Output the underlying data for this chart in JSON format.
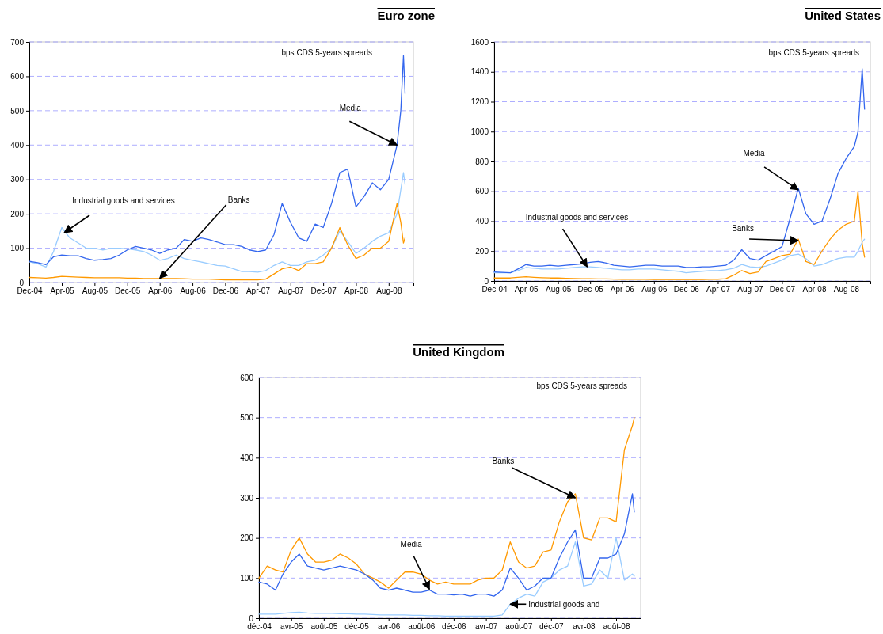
{
  "chart_data": [
    {
      "type": "line",
      "title": "Euro zone",
      "grid": "y",
      "xlim": [
        "2004-12-01",
        "2008-11-01"
      ],
      "ylim": [
        0,
        700
      ],
      "yticks": [
        0,
        100,
        200,
        300,
        400,
        500,
        600,
        700
      ],
      "xticks": [
        {
          "value": "2004-12-01",
          "label": "Dec-04"
        },
        {
          "value": "2005-04-01",
          "label": "Apr-05"
        },
        {
          "value": "2005-08-01",
          "label": "Aug-05"
        },
        {
          "value": "2005-12-01",
          "label": "Dec-05"
        },
        {
          "value": "2006-04-01",
          "label": "Apr-06"
        },
        {
          "value": "2006-08-01",
          "label": "Aug-06"
        },
        {
          "value": "2006-12-01",
          "label": "Dec-06"
        },
        {
          "value": "2007-04-01",
          "label": "Apr-07"
        },
        {
          "value": "2007-08-01",
          "label": "Aug-07"
        },
        {
          "value": "2007-12-01",
          "label": "Dec-07"
        },
        {
          "value": "2008-04-01",
          "label": "Apr-08"
        },
        {
          "value": "2008-08-01",
          "label": "Aug-08"
        }
      ],
      "x": [
        "2004-12-01",
        "2005-01-01",
        "2005-02-01",
        "2005-03-01",
        "2005-04-01",
        "2005-05-01",
        "2005-06-01",
        "2005-07-01",
        "2005-08-01",
        "2005-09-01",
        "2005-10-01",
        "2005-11-01",
        "2005-12-01",
        "2006-01-01",
        "2006-02-01",
        "2006-03-01",
        "2006-04-01",
        "2006-05-01",
        "2006-06-01",
        "2006-07-01",
        "2006-08-01",
        "2006-09-01",
        "2006-10-01",
        "2006-11-01",
        "2006-12-01",
        "2007-01-01",
        "2007-02-01",
        "2007-03-01",
        "2007-04-01",
        "2007-05-01",
        "2007-06-01",
        "2007-07-01",
        "2007-08-01",
        "2007-09-01",
        "2007-10-01",
        "2007-11-01",
        "2007-12-01",
        "2008-01-01",
        "2008-02-01",
        "2008-03-01",
        "2008-04-01",
        "2008-05-01",
        "2008-06-01",
        "2008-07-01",
        "2008-08-01",
        "2008-09-01",
        "2008-09-15",
        "2008-09-25",
        "2008-10-01"
      ],
      "series": [
        {
          "color": "#99ccff",
          "values": [
            60,
            55,
            45,
            90,
            160,
            130,
            115,
            100,
            100,
            95,
            100,
            100,
            98,
            95,
            90,
            80,
            65,
            70,
            80,
            70,
            65,
            60,
            55,
            50,
            48,
            40,
            32,
            32,
            30,
            35,
            50,
            60,
            50,
            50,
            60,
            65,
            80,
            100,
            150,
            120,
            85,
            100,
            120,
            135,
            145,
            200,
            270,
            320,
            285
          ]
        },
        {
          "color": "#ff9900",
          "values": [
            15,
            14,
            13,
            15,
            18,
            17,
            16,
            15,
            14,
            14,
            14,
            14,
            13,
            13,
            12,
            12,
            12,
            12,
            12,
            11,
            10,
            10,
            10,
            9,
            8,
            8,
            8,
            8,
            8,
            10,
            25,
            40,
            45,
            35,
            55,
            55,
            60,
            100,
            160,
            110,
            70,
            80,
            100,
            100,
            120,
            230,
            175,
            115,
            130
          ]
        },
        {
          "color": "#3366ee",
          "values": [
            62,
            58,
            52,
            75,
            80,
            78,
            78,
            70,
            65,
            67,
            70,
            80,
            95,
            105,
            100,
            95,
            85,
            95,
            100,
            125,
            120,
            130,
            125,
            118,
            110,
            110,
            105,
            95,
            90,
            95,
            140,
            230,
            175,
            130,
            120,
            170,
            160,
            230,
            320,
            330,
            220,
            250,
            290,
            270,
            300,
            400,
            500,
            660,
            550
          ]
        }
      ],
      "annotations": [
        "bps CDS 5-years spreads",
        {
          "text": "Media",
          "x": "2008-09-01",
          "y": 400
        },
        {
          "text": "Industrial goods and services",
          "x": "2005-04-10",
          "y": 145
        },
        {
          "text": "Banks",
          "x": "2006-04-01",
          "y": 12
        }
      ]
    },
    {
      "type": "line",
      "title": "United States",
      "grid": "y",
      "xlim": [
        "2004-12-01",
        "2008-11-01"
      ],
      "ylim": [
        0,
        1600
      ],
      "yticks": [
        0,
        200,
        400,
        600,
        800,
        1000,
        1200,
        1400,
        1600
      ],
      "xticks": [
        {
          "value": "2004-12-01",
          "label": "Dec-04"
        },
        {
          "value": "2005-04-01",
          "label": "Apr-05"
        },
        {
          "value": "2005-08-01",
          "label": "Aug-05"
        },
        {
          "value": "2005-12-01",
          "label": "Dec-05"
        },
        {
          "value": "2006-04-01",
          "label": "Apr-06"
        },
        {
          "value": "2006-08-01",
          "label": "Aug-06"
        },
        {
          "value": "2006-12-01",
          "label": "Dec-06"
        },
        {
          "value": "2007-04-01",
          "label": "Apr-07"
        },
        {
          "value": "2007-08-01",
          "label": "Aug-07"
        },
        {
          "value": "2007-12-01",
          "label": "Dec-07"
        },
        {
          "value": "2008-04-01",
          "label": "Apr-08"
        },
        {
          "value": "2008-08-01",
          "label": "Aug-08"
        }
      ],
      "x": [
        "2004-12-01",
        "2005-01-01",
        "2005-02-01",
        "2005-03-01",
        "2005-04-01",
        "2005-05-01",
        "2005-06-01",
        "2005-07-01",
        "2005-08-01",
        "2005-09-01",
        "2005-10-01",
        "2005-11-01",
        "2005-12-01",
        "2006-01-01",
        "2006-02-01",
        "2006-03-01",
        "2006-04-01",
        "2006-05-01",
        "2006-06-01",
        "2006-07-01",
        "2006-08-01",
        "2006-09-01",
        "2006-10-01",
        "2006-11-01",
        "2006-12-01",
        "2007-01-01",
        "2007-02-01",
        "2007-03-01",
        "2007-04-01",
        "2007-05-01",
        "2007-06-01",
        "2007-07-01",
        "2007-08-01",
        "2007-09-01",
        "2007-10-01",
        "2007-11-01",
        "2007-12-01",
        "2008-01-01",
        "2008-02-01",
        "2008-03-01",
        "2008-04-01",
        "2008-05-01",
        "2008-06-01",
        "2008-07-01",
        "2008-08-01",
        "2008-09-01",
        "2008-09-15",
        "2008-10-01",
        "2008-10-10"
      ],
      "series": [
        {
          "color": "#99ccff",
          "values": [
            55,
            55,
            55,
            70,
            90,
            85,
            80,
            80,
            80,
            85,
            90,
            95,
            95,
            90,
            85,
            80,
            75,
            75,
            80,
            80,
            80,
            75,
            70,
            65,
            55,
            60,
            65,
            70,
            70,
            75,
            85,
            110,
            95,
            90,
            100,
            120,
            140,
            170,
            180,
            150,
            100,
            110,
            130,
            150,
            160,
            160,
            200,
            260,
            280
          ]
        },
        {
          "color": "#ff9900",
          "values": [
            20,
            20,
            20,
            25,
            28,
            25,
            22,
            20,
            20,
            18,
            16,
            15,
            15,
            14,
            14,
            13,
            12,
            12,
            12,
            11,
            10,
            10,
            10,
            10,
            10,
            10,
            10,
            12,
            12,
            15,
            40,
            70,
            50,
            60,
            130,
            150,
            170,
            180,
            280,
            130,
            110,
            200,
            280,
            340,
            380,
            400,
            600,
            250,
            160
          ]
        },
        {
          "color": "#3366ee",
          "values": [
            60,
            58,
            55,
            80,
            110,
            100,
            100,
            105,
            100,
            105,
            110,
            115,
            125,
            130,
            120,
            105,
            100,
            95,
            100,
            105,
            105,
            100,
            100,
            100,
            90,
            90,
            95,
            95,
            100,
            105,
            140,
            210,
            150,
            140,
            170,
            200,
            230,
            420,
            620,
            450,
            380,
            400,
            550,
            720,
            820,
            900,
            1000,
            1420,
            1150
          ]
        }
      ],
      "annotations": [
        "bps CDS 5-years spreads",
        {
          "text": "Media",
          "x": "2008-02-01",
          "y": 610
        },
        {
          "text": "Banks",
          "x": "2008-02-01",
          "y": 270
        },
        {
          "text": "Industrial goods and services",
          "x": "2005-11-20",
          "y": 95
        }
      ]
    },
    {
      "type": "line",
      "title": "United Kingdom",
      "grid": "y",
      "xlim": [
        "2004-12-01",
        "2008-11-01"
      ],
      "ylim": [
        0,
        600
      ],
      "yticks": [
        0,
        100,
        200,
        300,
        400,
        500,
        600
      ],
      "xticks": [
        {
          "value": "2004-12-01",
          "label": "déc-04"
        },
        {
          "value": "2005-04-01",
          "label": "avr-05"
        },
        {
          "value": "2005-08-01",
          "label": "août-05"
        },
        {
          "value": "2005-12-01",
          "label": "déc-05"
        },
        {
          "value": "2006-04-01",
          "label": "avr-06"
        },
        {
          "value": "2006-08-01",
          "label": "août-06"
        },
        {
          "value": "2006-12-01",
          "label": "déc-06"
        },
        {
          "value": "2007-04-01",
          "label": "avr-07"
        },
        {
          "value": "2007-08-01",
          "label": "août-07"
        },
        {
          "value": "2007-12-01",
          "label": "déc-07"
        },
        {
          "value": "2008-04-01",
          "label": "avr-08"
        },
        {
          "value": "2008-08-01",
          "label": "août-08"
        }
      ],
      "x": [
        "2004-12-01",
        "2005-01-01",
        "2005-02-01",
        "2005-03-01",
        "2005-04-01",
        "2005-05-01",
        "2005-06-01",
        "2005-07-01",
        "2005-08-01",
        "2005-09-01",
        "2005-10-01",
        "2005-11-01",
        "2005-12-01",
        "2006-01-01",
        "2006-02-01",
        "2006-03-01",
        "2006-04-01",
        "2006-05-01",
        "2006-06-01",
        "2006-07-01",
        "2006-08-01",
        "2006-09-01",
        "2006-10-01",
        "2006-11-01",
        "2006-12-01",
        "2007-01-01",
        "2007-02-01",
        "2007-03-01",
        "2007-04-01",
        "2007-05-01",
        "2007-06-01",
        "2007-07-01",
        "2007-08-01",
        "2007-09-01",
        "2007-10-01",
        "2007-11-01",
        "2007-12-01",
        "2008-01-01",
        "2008-02-01",
        "2008-03-01",
        "2008-04-01",
        "2008-05-01",
        "2008-06-01",
        "2008-07-01",
        "2008-08-01",
        "2008-09-01",
        "2008-10-01",
        "2008-10-08"
      ],
      "series": [
        {
          "color": "#99ccff",
          "values": [
            10,
            10,
            10,
            12,
            14,
            15,
            13,
            12,
            12,
            12,
            11,
            11,
            10,
            10,
            9,
            8,
            8,
            8,
            8,
            7,
            7,
            6,
            6,
            5,
            5,
            5,
            5,
            5,
            5,
            5,
            8,
            35,
            50,
            60,
            55,
            90,
            100,
            120,
            130,
            190,
            80,
            85,
            120,
            100,
            200,
            95,
            110,
            105
          ]
        },
        {
          "color": "#ff9900",
          "values": [
            100,
            130,
            120,
            115,
            170,
            200,
            160,
            140,
            140,
            145,
            160,
            150,
            135,
            110,
            100,
            90,
            75,
            95,
            115,
            115,
            110,
            95,
            85,
            90,
            85,
            85,
            85,
            95,
            100,
            100,
            120,
            190,
            140,
            125,
            130,
            165,
            170,
            240,
            290,
            310,
            200,
            195,
            250,
            250,
            240,
            420,
            480,
            500
          ]
        },
        {
          "color": "#3366ee",
          "values": [
            90,
            85,
            70,
            110,
            140,
            160,
            130,
            125,
            120,
            125,
            130,
            125,
            120,
            110,
            95,
            75,
            70,
            75,
            70,
            65,
            65,
            70,
            60,
            60,
            58,
            60,
            55,
            60,
            60,
            55,
            70,
            125,
            100,
            70,
            80,
            100,
            100,
            150,
            190,
            220,
            100,
            100,
            150,
            150,
            160,
            210,
            310,
            265
          ]
        }
      ],
      "annotations": [
        "bps CDS 5-years spreads",
        {
          "text": "Banks",
          "x": "2008-03-01",
          "y": 300
        },
        {
          "text": "Media",
          "x": "2006-09-01",
          "y": 72
        },
        {
          "text": "Industrial goods and",
          "x": "2007-07-01",
          "y": 35
        }
      ]
    }
  ]
}
